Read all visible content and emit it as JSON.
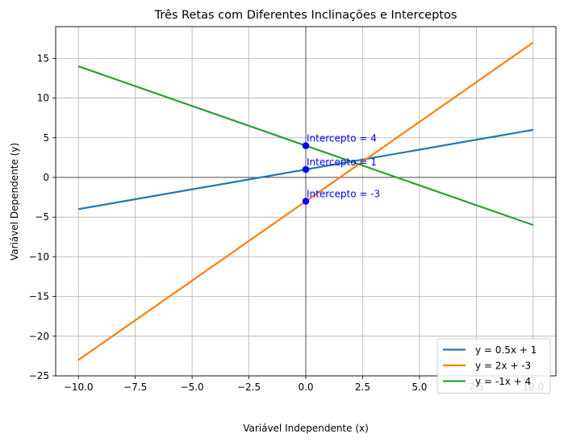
{
  "chart_data": {
    "type": "line",
    "title": "Três Retas com Diferentes Inclinações e Interceptos",
    "xlabel": "Variável Independente (x)",
    "ylabel": "Variável Dependente (y)",
    "xlim": [
      -11,
      11
    ],
    "ylim": [
      -25,
      19
    ],
    "xticks": [
      -10.0,
      -7.5,
      -5.0,
      -2.5,
      0.0,
      2.5,
      5.0,
      7.5,
      10.0
    ],
    "xtick_labels": [
      "−10.0",
      "−7.5",
      "−5.0",
      "−2.5",
      "0.0",
      "2.5",
      "5.0",
      "7.5",
      "10.0"
    ],
    "yticks": [
      -25,
      -20,
      -15,
      -10,
      -5,
      0,
      5,
      10,
      15
    ],
    "ytick_labels": [
      "−25",
      "−20",
      "−15",
      "−10",
      "−5",
      "0",
      "5",
      "10",
      "15"
    ],
    "grid": true,
    "legend_position": "lower-right",
    "series": [
      {
        "name": "y = 0.5x + 1",
        "color": "#1f77b4",
        "x": [
          -10,
          10
        ],
        "y": [
          -4,
          6
        ]
      },
      {
        "name": "y = 2x + -3",
        "color": "#ff7f0e",
        "x": [
          -10,
          10
        ],
        "y": [
          -23,
          17
        ]
      },
      {
        "name": "y = -1x + 4",
        "color": "#2ca02c",
        "x": [
          -10,
          10
        ],
        "y": [
          14,
          -6
        ]
      }
    ],
    "intercept_points": [
      {
        "x": 0,
        "y": 1,
        "label": "Intercepto = 1"
      },
      {
        "x": 0,
        "y": -3,
        "label": "Intercepto = -3"
      },
      {
        "x": 0,
        "y": 4,
        "label": "Intercepto = 4"
      }
    ],
    "intercept_color": "#0000ff"
  }
}
